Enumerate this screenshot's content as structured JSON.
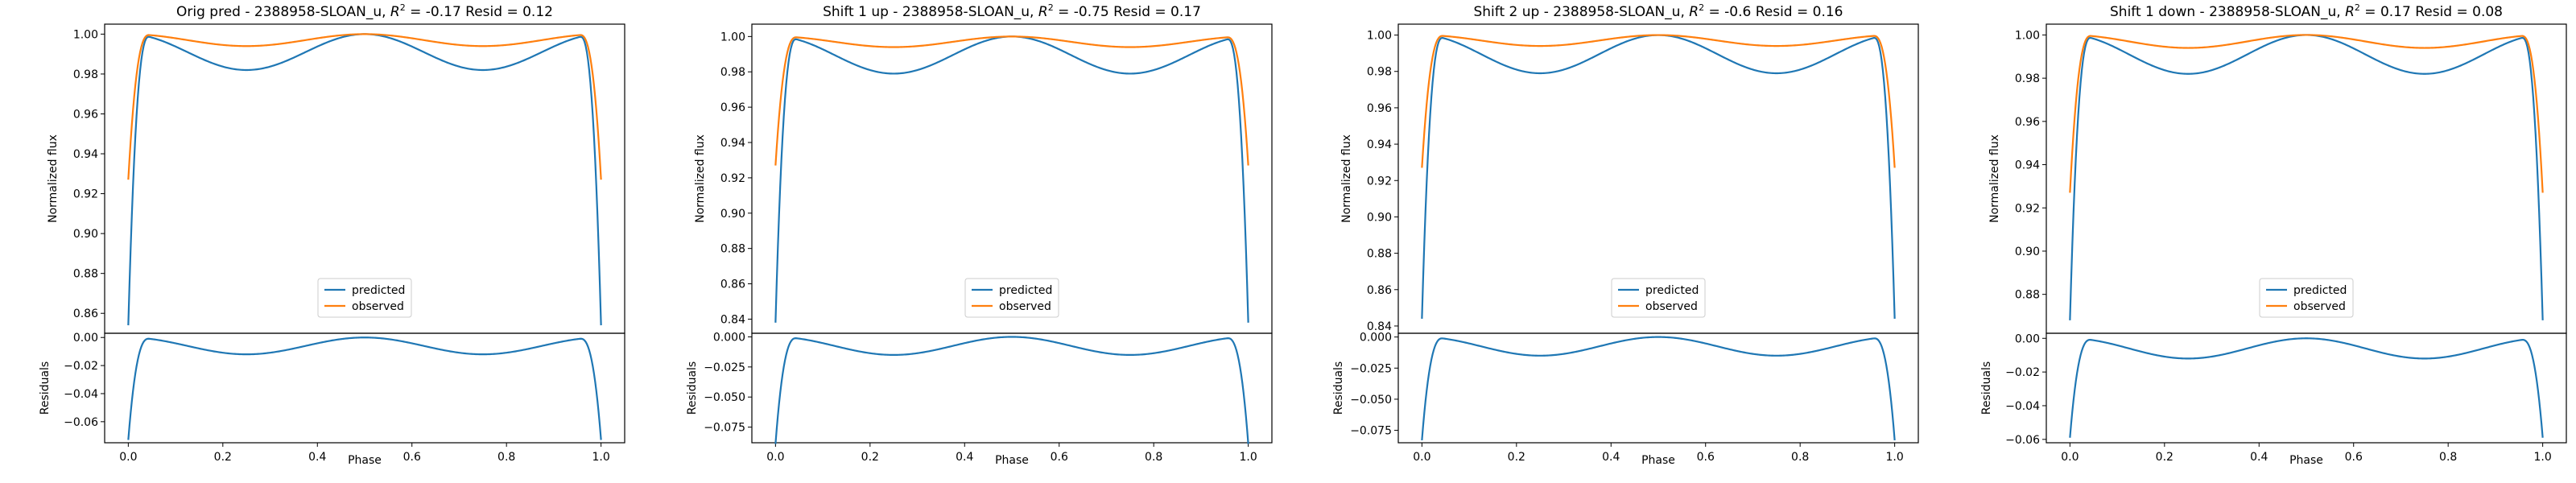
{
  "colors": {
    "predicted": "#1f77b4",
    "observed": "#ff7f0e"
  },
  "chart_data": [
    {
      "type": "line",
      "title": "Orig pred - 2388958-SLOAN_u, R² = -0.17 Resid = 0.12",
      "title_parts": {
        "prefix": "Orig pred - 2388958-SLOAN_u, ",
        "r2": "R",
        "sup": "2",
        "suffix": " = -0.17 Resid = 0.12"
      },
      "xlabel": "Phase",
      "top": {
        "ylabel": "Normalized flux",
        "ylim": [
          0.85,
          1.005
        ],
        "yticks": [
          0.86,
          0.88,
          0.9,
          0.92,
          0.94,
          0.96,
          0.98,
          1.0
        ],
        "ytick_labels": [
          "0.86",
          "0.88",
          "0.90",
          "0.92",
          "0.94",
          "0.96",
          "0.98",
          "1.00"
        ],
        "series": [
          {
            "name": "predicted",
            "depth": 0.146,
            "shoulder": 0.982,
            "dip": 0.982
          },
          {
            "name": "observed",
            "depth": 0.073,
            "shoulder": 0.994,
            "dip": 0.993
          }
        ],
        "legend": "lower center"
      },
      "bottom": {
        "ylabel": "Residuals",
        "ylim": [
          -0.075,
          0.003
        ],
        "yticks": [
          0.0,
          -0.02,
          -0.04,
          -0.06
        ],
        "ytick_labels": [
          "0.00",
          "−0.02",
          "−0.04",
          "−0.06"
        ]
      },
      "xticks": [
        0.0,
        0.2,
        0.4,
        0.6,
        0.8,
        1.0
      ],
      "xtick_labels": [
        "0.0",
        "0.2",
        "0.4",
        "0.6",
        "0.8",
        "1.0"
      ]
    },
    {
      "type": "line",
      "title": "Shift 1 up - 2388958-SLOAN_u, R² = -0.75 Resid = 0.17",
      "title_parts": {
        "prefix": "Shift 1 up - 2388958-SLOAN_u, ",
        "r2": "R",
        "sup": "2",
        "suffix": " = -0.75 Resid = 0.17"
      },
      "xlabel": "Phase",
      "top": {
        "ylabel": "Normalized flux",
        "ylim": [
          0.832,
          1.007
        ],
        "yticks": [
          0.84,
          0.86,
          0.88,
          0.9,
          0.92,
          0.94,
          0.96,
          0.98,
          1.0
        ],
        "ytick_labels": [
          "0.84",
          "0.86",
          "0.88",
          "0.90",
          "0.92",
          "0.94",
          "0.96",
          "0.98",
          "1.00"
        ],
        "series": [
          {
            "name": "predicted",
            "depth": 0.162,
            "shoulder": 0.979,
            "dip": 0.979
          },
          {
            "name": "observed",
            "depth": 0.073,
            "shoulder": 0.994,
            "dip": 0.993
          }
        ],
        "legend": "lower center"
      },
      "bottom": {
        "ylabel": "Residuals",
        "ylim": [
          -0.088,
          0.003
        ],
        "yticks": [
          0.0,
          -0.025,
          -0.05,
          -0.075
        ],
        "ytick_labels": [
          "0.000",
          "−0.025",
          "−0.050",
          "−0.075"
        ]
      },
      "xticks": [
        0.0,
        0.2,
        0.4,
        0.6,
        0.8,
        1.0
      ],
      "xtick_labels": [
        "0.0",
        "0.2",
        "0.4",
        "0.6",
        "0.8",
        "1.0"
      ]
    },
    {
      "type": "line",
      "title": "Shift 2 up - 2388958-SLOAN_u, R² = -0.6 Resid = 0.16",
      "title_parts": {
        "prefix": "Shift 2 up - 2388958-SLOAN_u, ",
        "r2": "R",
        "sup": "2",
        "suffix": " = -0.6 Resid = 0.16"
      },
      "xlabel": "Phase",
      "top": {
        "ylabel": "Normalized flux",
        "ylim": [
          0.836,
          1.006
        ],
        "yticks": [
          0.84,
          0.86,
          0.88,
          0.9,
          0.92,
          0.94,
          0.96,
          0.98,
          1.0
        ],
        "ytick_labels": [
          "0.84",
          "0.86",
          "0.88",
          "0.90",
          "0.92",
          "0.94",
          "0.96",
          "0.98",
          "1.00"
        ],
        "series": [
          {
            "name": "predicted",
            "depth": 0.156,
            "shoulder": 0.979,
            "dip": 0.979
          },
          {
            "name": "observed",
            "depth": 0.073,
            "shoulder": 0.994,
            "dip": 0.993
          }
        ],
        "legend": "lower center"
      },
      "bottom": {
        "ylabel": "Residuals",
        "ylim": [
          -0.085,
          0.003
        ],
        "yticks": [
          0.0,
          -0.025,
          -0.05,
          -0.075
        ],
        "ytick_labels": [
          "0.000",
          "−0.025",
          "−0.050",
          "−0.075"
        ]
      },
      "xticks": [
        0.0,
        0.2,
        0.4,
        0.6,
        0.8,
        1.0
      ],
      "xtick_labels": [
        "0.0",
        "0.2",
        "0.4",
        "0.6",
        "0.8",
        "1.0"
      ]
    },
    {
      "type": "line",
      "title": "Shift 1 down - 2388958-SLOAN_u, R² = 0.17 Resid = 0.08",
      "title_parts": {
        "prefix": "Shift 1 down - 2388958-SLOAN_u, ",
        "r2": "R",
        "sup": "2",
        "suffix": " = 0.17 Resid = 0.08"
      },
      "xlabel": "Phase",
      "top": {
        "ylabel": "Normalized flux",
        "ylim": [
          0.862,
          1.005
        ],
        "yticks": [
          0.88,
          0.9,
          0.92,
          0.94,
          0.96,
          0.98,
          1.0
        ],
        "ytick_labels": [
          "0.88",
          "0.90",
          "0.92",
          "0.94",
          "0.96",
          "0.98",
          "1.00"
        ],
        "series": [
          {
            "name": "predicted",
            "depth": 0.132,
            "shoulder": 0.982,
            "dip": 0.982
          },
          {
            "name": "observed",
            "depth": 0.073,
            "shoulder": 0.994,
            "dip": 0.993
          }
        ],
        "legend": "lower center"
      },
      "bottom": {
        "ylabel": "Residuals",
        "ylim": [
          -0.062,
          0.003
        ],
        "yticks": [
          0.0,
          -0.02,
          -0.04,
          -0.06
        ],
        "ytick_labels": [
          "0.00",
          "−0.02",
          "−0.04",
          "−0.06"
        ]
      },
      "xticks": [
        0.0,
        0.2,
        0.4,
        0.6,
        0.8,
        1.0
      ],
      "xtick_labels": [
        "0.0",
        "0.2",
        "0.4",
        "0.6",
        "0.8",
        "1.0"
      ]
    }
  ]
}
